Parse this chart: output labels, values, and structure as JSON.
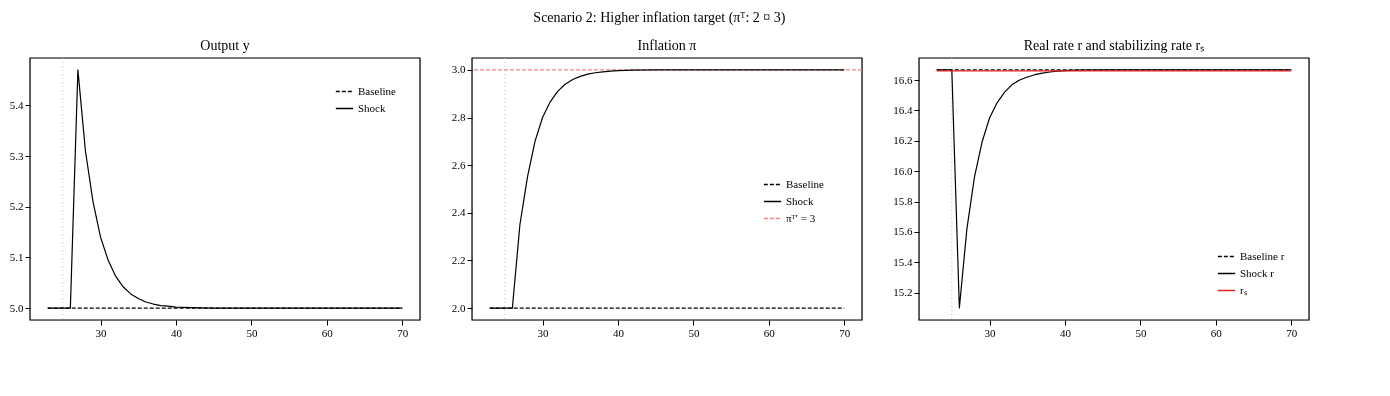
{
  "chart_data": [
    {
      "type": "line",
      "title": "Output y",
      "annotations": [
        "Scenario 2: Higher inflation target (πᵀ: 2 ¤ 3)"
      ],
      "xlim": [
        20.65,
        72.35
      ],
      "xticks": [
        30,
        40,
        50,
        60,
        70
      ],
      "ylim": [
        4.9765,
        5.4935
      ],
      "yticks": [
        {
          "value": 5.0,
          "label": "5.0"
        },
        5.1,
        5.2,
        5.3,
        5.4
      ],
      "legend": "top right",
      "series": [
        {
          "name": "Baseline",
          "color": "#000000",
          "line_style": "dashed",
          "x": [
            23,
            70
          ],
          "values": [
            5.0,
            5.0
          ]
        },
        {
          "name": "Shock",
          "color": "#000000",
          "line_style": "solid",
          "x": [
            23,
            24,
            25,
            26,
            27,
            28,
            29,
            30,
            31,
            32,
            33,
            34,
            35,
            36,
            37,
            38,
            39,
            40,
            42,
            45,
            70
          ],
          "values": [
            5.0,
            5.0,
            5.0,
            5.0,
            5.47,
            5.31,
            5.21,
            5.14,
            5.095,
            5.063,
            5.042,
            5.028,
            5.019,
            5.012,
            5.008,
            5.005,
            5.004,
            5.002,
            5.001,
            5.0,
            5.0
          ]
        }
      ],
      "ref_lines": [
        {
          "axis": "x",
          "value": 25,
          "color": "#bbbbbb",
          "line_style": "dotted"
        }
      ]
    },
    {
      "type": "line",
      "title": "Inflation π",
      "xlim": [
        20.65,
        72.35
      ],
      "xticks": [
        30,
        40,
        50,
        60,
        70
      ],
      "ylim": [
        1.95,
        3.05
      ],
      "yticks": [
        {
          "value": 2.0,
          "label": "2.0"
        },
        2.2,
        2.4,
        2.6,
        2.8,
        {
          "value": 3.0,
          "label": "3.0"
        }
      ],
      "legend": "right",
      "series": [
        {
          "name": "Baseline",
          "color": "#000000",
          "line_style": "dashed",
          "x": [
            23,
            70
          ],
          "values": [
            2.0,
            2.0
          ]
        },
        {
          "name": "Shock",
          "color": "#000000",
          "line_style": "solid",
          "x": [
            23,
            24,
            25,
            26,
            27,
            28,
            29,
            30,
            31,
            32,
            33,
            34,
            35,
            36,
            37,
            38,
            39,
            40,
            42,
            45,
            70
          ],
          "values": [
            2.0,
            2.0,
            2.0,
            2.0,
            2.35,
            2.55,
            2.7,
            2.8,
            2.865,
            2.91,
            2.94,
            2.96,
            2.973,
            2.982,
            2.988,
            2.992,
            2.995,
            2.997,
            2.999,
            3.0,
            3.0
          ]
        }
      ],
      "ref_lines": [
        {
          "axis": "y",
          "value": 3.0,
          "label": "πᵀ′ = 3",
          "color": "#f4837d",
          "line_style": "dashed"
        },
        {
          "axis": "x",
          "value": 25,
          "color": "#bbbbbb",
          "line_style": "dotted"
        }
      ]
    },
    {
      "type": "line",
      "title": "Real rate r and stabilizing rate rₛ",
      "xlim": [
        20.65,
        72.35
      ],
      "xticks": [
        30,
        40,
        50,
        60,
        70
      ],
      "ylim": [
        15.02,
        16.745
      ],
      "yticks": [
        15.2,
        15.4,
        15.6,
        15.8,
        {
          "value": 16.0,
          "label": "16.0"
        },
        16.2,
        16.4,
        16.6
      ],
      "legend": "bottom right",
      "series": [
        {
          "name": "Baseline r",
          "color": "#000000",
          "line_style": "dashed",
          "x": [
            23,
            70
          ],
          "values": [
            16.667,
            16.667
          ]
        },
        {
          "name": "Shock r",
          "color": "#000000",
          "line_style": "solid",
          "x": [
            23,
            24,
            25,
            26,
            27,
            28,
            29,
            30,
            31,
            32,
            33,
            34,
            35,
            36,
            37,
            38,
            39,
            40,
            42,
            45,
            70
          ],
          "values": [
            16.667,
            16.667,
            16.667,
            15.1,
            15.62,
            15.96,
            16.19,
            16.35,
            16.45,
            16.52,
            16.57,
            16.6,
            16.62,
            16.635,
            16.645,
            16.653,
            16.658,
            16.662,
            16.665,
            16.667,
            16.667
          ]
        },
        {
          "name": "rₛ",
          "color": "#e8201c",
          "line_style": "solid",
          "x": [
            23,
            70
          ],
          "values": [
            16.66,
            16.66
          ]
        }
      ],
      "ref_lines": [
        {
          "axis": "x",
          "value": 25,
          "color": "#bbbbbb",
          "line_style": "dotted"
        }
      ]
    }
  ]
}
